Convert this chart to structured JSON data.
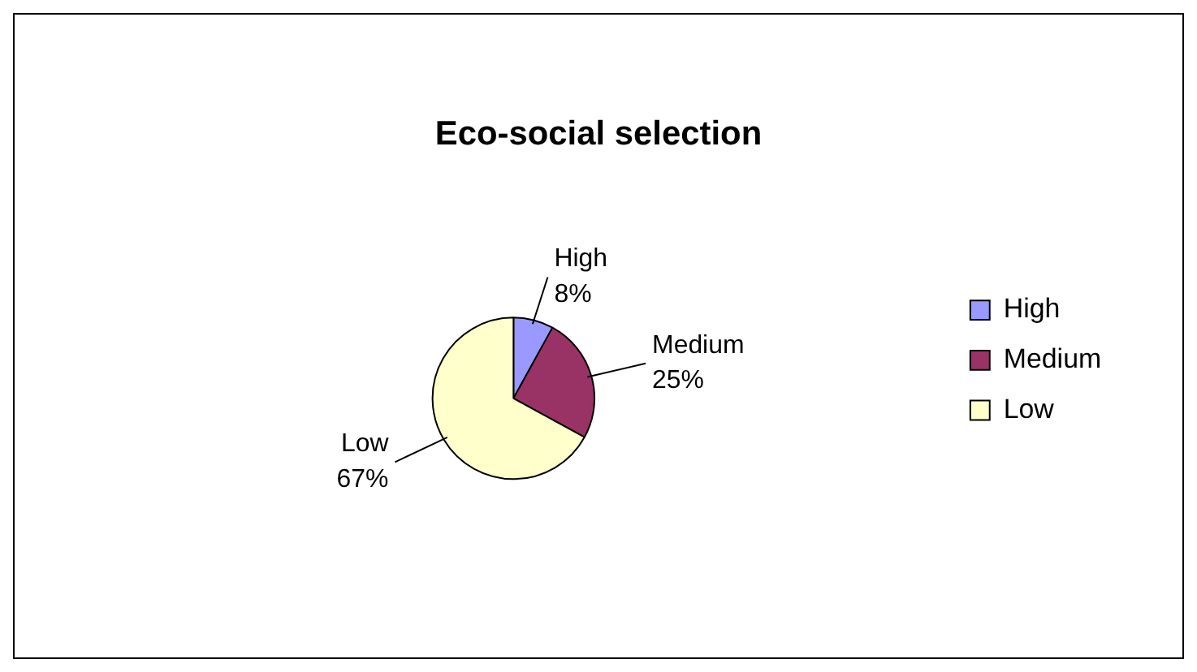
{
  "chart_data": {
    "type": "pie",
    "title": "Eco-social selection",
    "categories": [
      "High",
      "Medium",
      "Low"
    ],
    "values": [
      8,
      25,
      67
    ],
    "colors": [
      "#9999ff",
      "#993366",
      "#ffffcc"
    ],
    "value_labels": [
      "8%",
      "25%",
      "67%"
    ],
    "legend": "right"
  }
}
